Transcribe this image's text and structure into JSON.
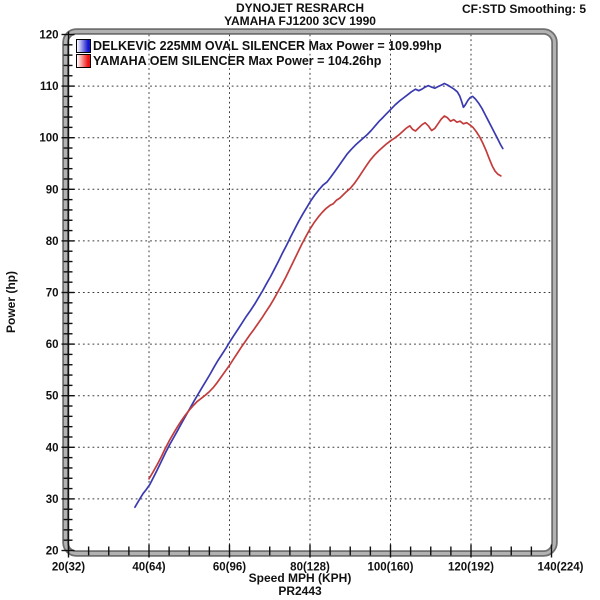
{
  "header": {
    "title_line1": "DYNOJET RESRARCH",
    "title_line2": "YAMAHA FJ1200 3CV 1990",
    "smoothing": "CF:STD Smoothing: 5"
  },
  "footer": {
    "xlabel": "Speed MPH (KPH)",
    "run_code": "PR2443"
  },
  "ylabel": "Power (hp)",
  "legend": [
    {
      "label": "DELKEVIC 225MM OVAL SILENCER Max Power  = 109.99hp",
      "color": "#1414cc"
    },
    {
      "label": "YAMAHA OEM SILENCER Max Power = 104.26hp",
      "color": "#ee1414"
    }
  ],
  "chart_data": {
    "type": "line",
    "title": "DYNOJET RESRARCH - YAMAHA FJ1200 3CV 1990",
    "xlabel": "Speed MPH (KPH)",
    "ylabel": "Power (hp)",
    "xlim": [
      20,
      140
    ],
    "ylim": [
      20,
      120
    ],
    "x_major_step": 20,
    "x_minor_step": 5,
    "y_major_step": 10,
    "y_minor_step": 2,
    "grid": true,
    "grid_style": "dotted",
    "x_tick_labels": [
      "20(32)",
      "40(64)",
      "60(96)",
      "80(128)",
      "100(160)",
      "120(192)",
      "140(224)"
    ],
    "y_tick_labels": [
      "20",
      "30",
      "40",
      "50",
      "60",
      "70",
      "80",
      "90",
      "100",
      "110",
      "120"
    ],
    "legend_position": "top-left-inside",
    "series": [
      {
        "name": "DELKEVIC 225MM OVAL SILENCER",
        "max_power_hp": 109.99,
        "color": "#3a3ab0",
        "points": [
          [
            36.5,
            28.4
          ],
          [
            37.5,
            29.7
          ],
          [
            38.5,
            31.0
          ],
          [
            39.3,
            31.8
          ],
          [
            40.2,
            32.8
          ],
          [
            41.2,
            34.3
          ],
          [
            42.2,
            35.9
          ],
          [
            43.2,
            37.5
          ],
          [
            44.2,
            39.1
          ],
          [
            45.2,
            40.6
          ],
          [
            46.2,
            42.0
          ],
          [
            47.2,
            43.4
          ],
          [
            48.2,
            44.8
          ],
          [
            49.2,
            46.2
          ],
          [
            50.2,
            47.6
          ],
          [
            51.2,
            49.0
          ],
          [
            52.2,
            50.3
          ],
          [
            53.2,
            51.6
          ],
          [
            54.2,
            52.9
          ],
          [
            55.2,
            54.2
          ],
          [
            56.2,
            55.6
          ],
          [
            57.2,
            56.9
          ],
          [
            58.2,
            58.1
          ],
          [
            59.2,
            59.3
          ],
          [
            60.2,
            60.6
          ],
          [
            61.2,
            61.8
          ],
          [
            62.2,
            63.0
          ],
          [
            63.2,
            64.2
          ],
          [
            64.2,
            65.4
          ],
          [
            65.2,
            66.5
          ],
          [
            66.2,
            67.7
          ],
          [
            67.2,
            69.0
          ],
          [
            68.2,
            70.3
          ],
          [
            69.2,
            71.7
          ],
          [
            70.2,
            73.1
          ],
          [
            71.2,
            74.6
          ],
          [
            72.2,
            76.1
          ],
          [
            73.2,
            77.7
          ],
          [
            74.2,
            79.2
          ],
          [
            75.2,
            80.8
          ],
          [
            76.2,
            82.3
          ],
          [
            77.2,
            83.8
          ],
          [
            78.2,
            85.2
          ],
          [
            79.2,
            86.5
          ],
          [
            80.2,
            87.8
          ],
          [
            81.2,
            88.9
          ],
          [
            82.2,
            89.9
          ],
          [
            83.2,
            90.8
          ],
          [
            84.2,
            91.4
          ],
          [
            85.2,
            92.4
          ],
          [
            86.2,
            93.5
          ],
          [
            87.2,
            94.6
          ],
          [
            88.2,
            95.7
          ],
          [
            89.2,
            96.8
          ],
          [
            90.2,
            97.7
          ],
          [
            91.2,
            98.5
          ],
          [
            92.2,
            99.2
          ],
          [
            93.2,
            99.9
          ],
          [
            94.2,
            100.6
          ],
          [
            95.2,
            101.4
          ],
          [
            96.2,
            102.3
          ],
          [
            97.2,
            103.2
          ],
          [
            98.2,
            104.0
          ],
          [
            99.2,
            104.8
          ],
          [
            100.2,
            105.6
          ],
          [
            101.2,
            106.4
          ],
          [
            102.2,
            107.1
          ],
          [
            103.2,
            107.7
          ],
          [
            104.2,
            108.3
          ],
          [
            105.2,
            108.9
          ],
          [
            106.2,
            109.4
          ],
          [
            107.0,
            109.1
          ],
          [
            107.8,
            109.4
          ],
          [
            108.6,
            109.8
          ],
          [
            109.4,
            110.1
          ],
          [
            110.2,
            109.8
          ],
          [
            111.0,
            109.6
          ],
          [
            111.8,
            109.9
          ],
          [
            112.6,
            110.2
          ],
          [
            113.4,
            110.5
          ],
          [
            114.2,
            110.2
          ],
          [
            115.0,
            109.8
          ],
          [
            115.8,
            109.4
          ],
          [
            116.6,
            108.9
          ],
          [
            117.2,
            108.1
          ],
          [
            117.7,
            107.0
          ],
          [
            118.1,
            105.9
          ],
          [
            118.6,
            106.4
          ],
          [
            119.2,
            107.2
          ],
          [
            119.8,
            107.8
          ],
          [
            120.4,
            108.0
          ],
          [
            121.1,
            107.5
          ],
          [
            121.9,
            106.7
          ],
          [
            122.7,
            105.7
          ],
          [
            123.5,
            104.5
          ],
          [
            124.3,
            103.3
          ],
          [
            125.1,
            102.1
          ],
          [
            125.9,
            100.9
          ],
          [
            126.6,
            99.8
          ],
          [
            127.3,
            98.7
          ],
          [
            127.9,
            97.9
          ]
        ]
      },
      {
        "name": "YAMAHA OEM SILENCER",
        "max_power_hp": 104.26,
        "color": "#c33c3c",
        "points": [
          [
            40.0,
            33.9
          ],
          [
            41.0,
            35.2
          ],
          [
            42.0,
            36.6
          ],
          [
            43.0,
            38.1
          ],
          [
            44.0,
            39.7
          ],
          [
            45.0,
            41.2
          ],
          [
            46.0,
            42.6
          ],
          [
            47.0,
            43.9
          ],
          [
            48.0,
            45.1
          ],
          [
            49.0,
            46.2
          ],
          [
            50.0,
            47.2
          ],
          [
            51.0,
            48.1
          ],
          [
            52.0,
            48.9
          ],
          [
            53.0,
            49.5
          ],
          [
            54.0,
            50.1
          ],
          [
            55.0,
            50.8
          ],
          [
            56.0,
            51.6
          ],
          [
            57.0,
            52.6
          ],
          [
            58.0,
            53.7
          ],
          [
            59.0,
            54.8
          ],
          [
            60.0,
            55.9
          ],
          [
            61.0,
            57.1
          ],
          [
            62.0,
            58.3
          ],
          [
            63.0,
            59.5
          ],
          [
            64.0,
            60.6
          ],
          [
            65.0,
            61.7
          ],
          [
            66.0,
            62.8
          ],
          [
            67.0,
            63.9
          ],
          [
            68.0,
            65.0
          ],
          [
            69.0,
            66.2
          ],
          [
            70.0,
            67.4
          ],
          [
            71.0,
            68.7
          ],
          [
            72.0,
            70.1
          ],
          [
            73.0,
            71.5
          ],
          [
            74.0,
            73.0
          ],
          [
            75.0,
            74.6
          ],
          [
            76.0,
            76.2
          ],
          [
            77.0,
            77.8
          ],
          [
            78.0,
            79.4
          ],
          [
            79.0,
            80.9
          ],
          [
            80.0,
            82.3
          ],
          [
            81.0,
            83.5
          ],
          [
            82.0,
            84.6
          ],
          [
            83.0,
            85.5
          ],
          [
            84.0,
            86.3
          ],
          [
            85.0,
            86.9
          ],
          [
            85.8,
            87.2
          ],
          [
            86.6,
            87.9
          ],
          [
            87.4,
            88.3
          ],
          [
            88.2,
            88.9
          ],
          [
            89.0,
            89.5
          ],
          [
            90.0,
            90.2
          ],
          [
            91.0,
            91.1
          ],
          [
            92.0,
            92.2
          ],
          [
            93.0,
            93.4
          ],
          [
            94.0,
            94.6
          ],
          [
            95.0,
            95.7
          ],
          [
            96.0,
            96.6
          ],
          [
            97.0,
            97.4
          ],
          [
            98.0,
            98.1
          ],
          [
            99.0,
            98.8
          ],
          [
            100.0,
            99.4
          ],
          [
            101.0,
            99.9
          ],
          [
            102.0,
            100.5
          ],
          [
            103.0,
            101.2
          ],
          [
            104.0,
            101.9
          ],
          [
            104.8,
            102.3
          ],
          [
            105.5,
            101.6
          ],
          [
            106.2,
            101.3
          ],
          [
            107.0,
            101.9
          ],
          [
            107.8,
            102.5
          ],
          [
            108.6,
            102.9
          ],
          [
            109.4,
            102.3
          ],
          [
            110.2,
            101.4
          ],
          [
            111.0,
            101.8
          ],
          [
            111.8,
            102.7
          ],
          [
            112.6,
            103.6
          ],
          [
            113.4,
            104.2
          ],
          [
            114.1,
            103.9
          ],
          [
            114.9,
            103.2
          ],
          [
            115.7,
            103.5
          ],
          [
            116.5,
            103.0
          ],
          [
            117.3,
            103.2
          ],
          [
            118.1,
            102.7
          ],
          [
            118.9,
            102.9
          ],
          [
            119.7,
            102.5
          ],
          [
            120.5,
            102.0
          ],
          [
            121.3,
            101.2
          ],
          [
            122.1,
            100.2
          ],
          [
            122.9,
            99.0
          ],
          [
            123.7,
            97.6
          ],
          [
            124.5,
            96.0
          ],
          [
            125.3,
            94.5
          ],
          [
            126.0,
            93.5
          ],
          [
            126.7,
            92.9
          ],
          [
            127.4,
            92.6
          ]
        ]
      }
    ]
  }
}
